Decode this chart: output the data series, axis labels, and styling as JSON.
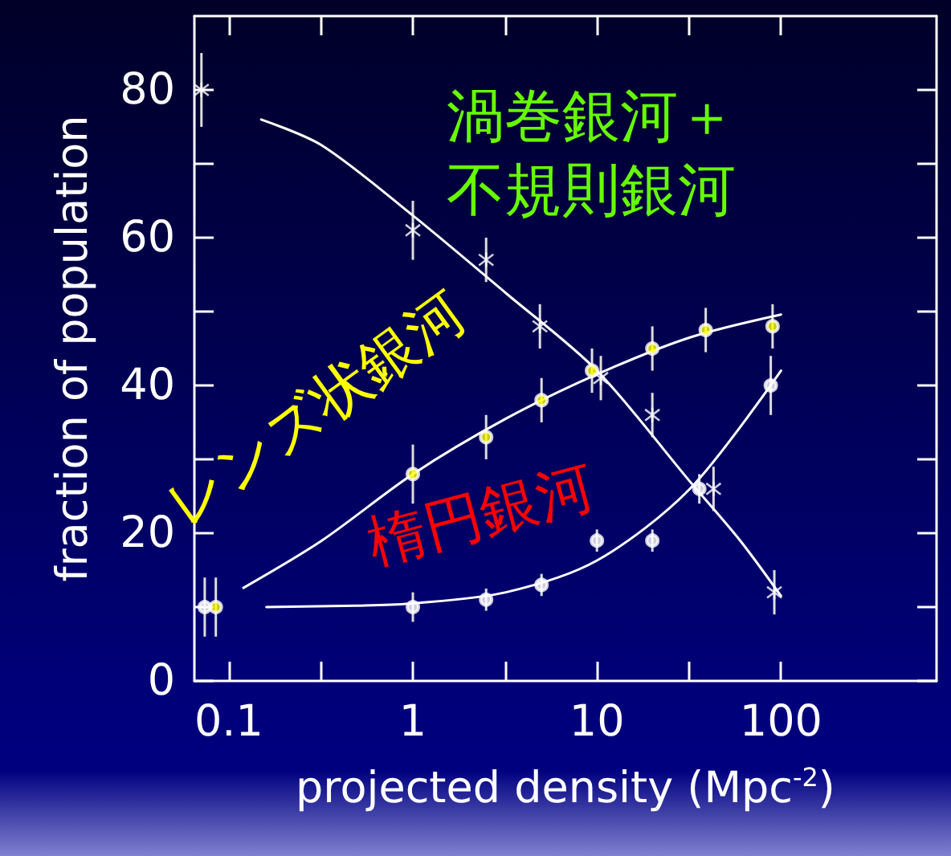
{
  "chart_data": {
    "type": "scatter",
    "xlabel": "projected density (Mpc$^{-2}$)",
    "ylabel": "fraction of population",
    "log": "x",
    "xlim": [
      0.065,
      700
    ],
    "ylim": [
      0,
      90
    ],
    "xticks": [
      0.1,
      {
        "value": 0.316,
        "label": null
      },
      1,
      {
        "value": 3.16,
        "label": null
      },
      10,
      {
        "value": 31.6,
        "label": null
      },
      100
    ],
    "yticks": [
      0,
      {
        "value": 10,
        "label": null
      },
      20,
      {
        "value": 30,
        "label": null
      },
      40,
      {
        "value": 50,
        "label": null
      },
      60,
      {
        "value": 70,
        "label": null
      },
      80
    ],
    "grid": false,
    "legend": "top",
    "series": [
      {
        "name": "渦巻銀河＋不規則銀河",
        "marker": "cross",
        "color": "#ffffff",
        "x": [
          0.071,
          1,
          2.5,
          4.9,
          10.5,
          20,
          43,
          92
        ],
        "values": [
          80,
          61,
          57,
          48,
          41,
          36,
          26,
          12
        ],
        "errors": [
          5,
          4,
          3,
          3,
          3,
          3,
          3,
          3
        ]
      },
      {
        "name": "レンズ状銀河",
        "marker": "circle",
        "color": "#ffff00",
        "x": [
          0.085,
          1,
          2.5,
          5,
          9.4,
          20,
          39,
          90
        ],
        "values": [
          10,
          28,
          33,
          38,
          42,
          45,
          47.5,
          48
        ],
        "errors": [
          4,
          4,
          3,
          3,
          3,
          3,
          3,
          3
        ]
      },
      {
        "name": "楕円銀河",
        "marker": "circle",
        "color": "#ffffff",
        "x": [
          0.074,
          1,
          2.5,
          5,
          10,
          20,
          36,
          88
        ],
        "values": [
          10,
          10,
          11,
          13,
          19,
          19,
          26,
          40
        ],
        "errors": [
          4,
          2,
          1.5,
          1.5,
          1.5,
          1.5,
          2,
          4
        ]
      },
      {
        "type": "line",
        "marker": "none",
        "color": "#ffffff",
        "x": [
          0.15,
          0.32,
          1,
          3.2,
          10,
          32,
          60,
          100
        ],
        "values": [
          76,
          72.5,
          63,
          52.5,
          42,
          27,
          19,
          11.5
        ]
      },
      {
        "type": "line",
        "marker": "none",
        "color": "#ffffff",
        "x": [
          0.12,
          0.32,
          1,
          3.2,
          10,
          32,
          100
        ],
        "values": [
          12.6,
          19,
          28,
          35.5,
          41.5,
          46.5,
          49.6
        ]
      },
      {
        "type": "line",
        "marker": "none",
        "color": "#ffffff",
        "x": [
          0.16,
          0.5,
          1,
          3.2,
          10,
          32,
          100
        ],
        "values": [
          10,
          10.2,
          10.5,
          12,
          16.3,
          26,
          42
        ]
      }
    ]
  }
}
